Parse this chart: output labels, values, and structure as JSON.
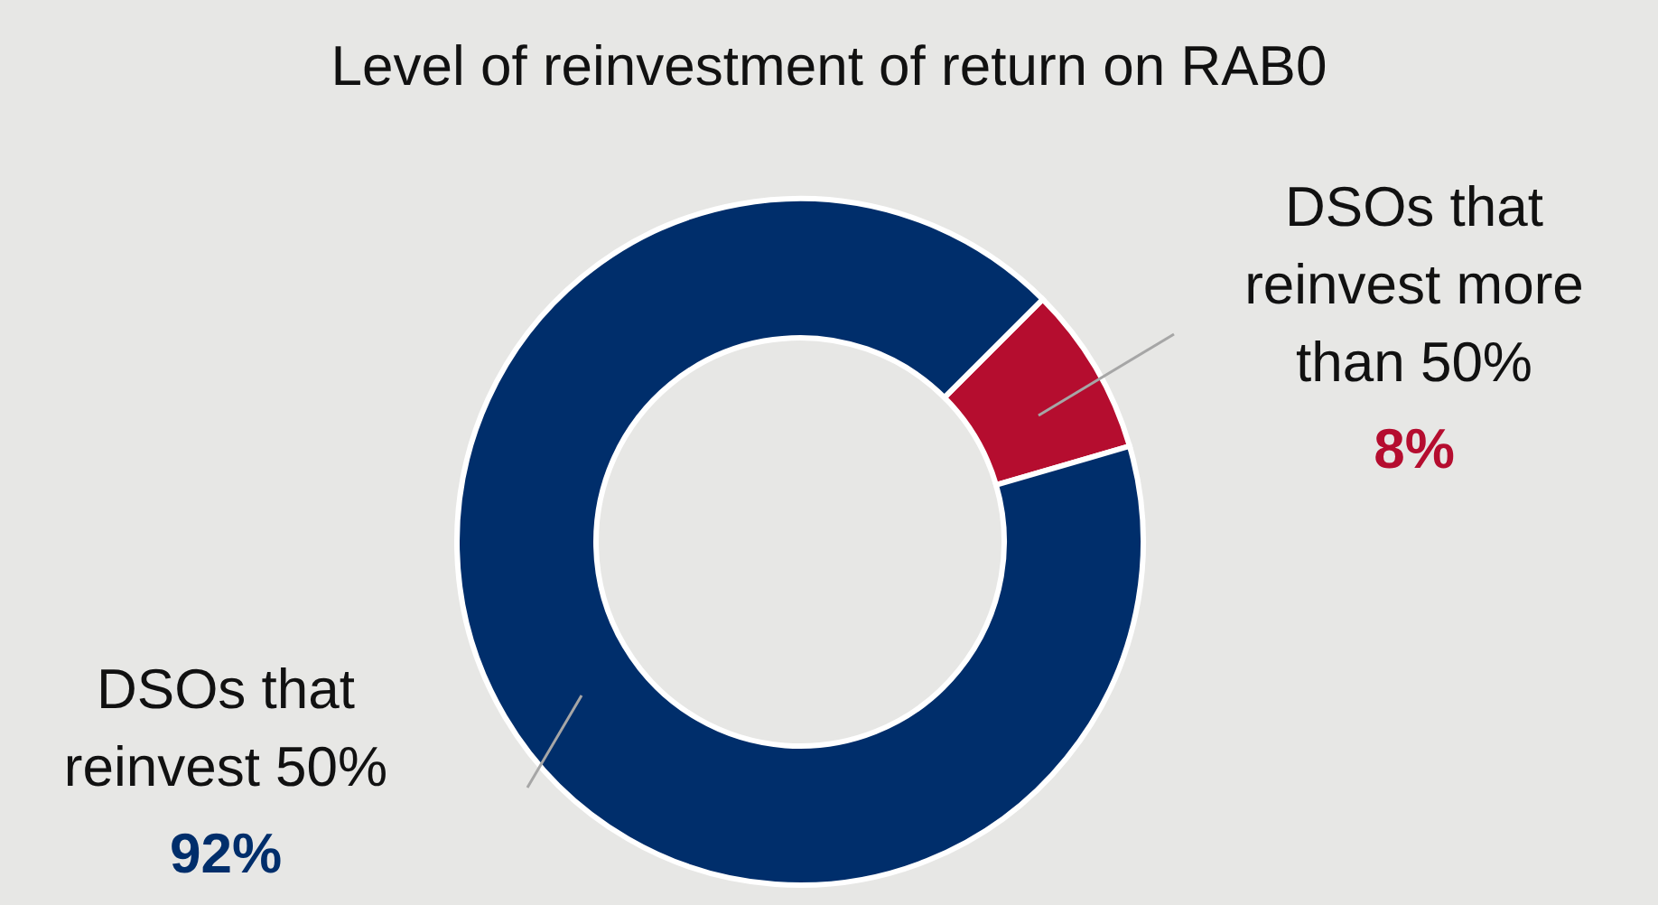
{
  "chart_data": {
    "type": "donut",
    "title": "Level of reinvestment of return on RAB0",
    "categories": [
      "DSOs that reinvest more than 50%",
      "DSOs that reinvest 50%"
    ],
    "values": [
      8,
      92
    ],
    "colors": [
      "#b50d2f",
      "#002e6b"
    ],
    "value_labels": [
      "8%",
      "92%"
    ],
    "legend": false
  }
}
